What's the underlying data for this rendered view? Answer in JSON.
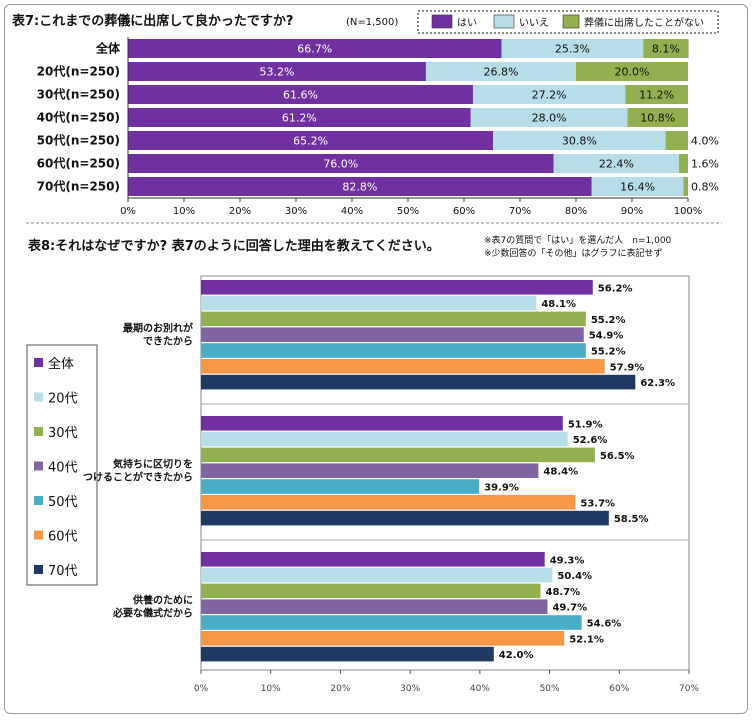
{
  "chart_data": [
    {
      "type": "bar",
      "orientation": "horizontal",
      "stacked": true,
      "title": "表7:これまでの葬儀に出席して良かったですか?",
      "subtitle": "(N=1,500)",
      "categories": [
        "全体",
        "20代(n=250)",
        "30代(n=250)",
        "40代(n=250)",
        "50代(n=250)",
        "60代(n=250)",
        "70代(n=250)"
      ],
      "series": [
        {
          "name": "はい",
          "color": "#7030a0",
          "values": [
            66.7,
            53.2,
            61.6,
            61.2,
            65.2,
            76.0,
            82.8
          ]
        },
        {
          "name": "いいえ",
          "color": "#b7dde8",
          "values": [
            25.3,
            26.8,
            27.2,
            28.0,
            30.8,
            22.4,
            16.4
          ]
        },
        {
          "name": "葬儀に出席したことがない",
          "color": "#92b050",
          "values": [
            8.1,
            20.0,
            11.2,
            10.8,
            4.0,
            1.6,
            0.8
          ]
        }
      ],
      "labels": [
        [
          "66.7%",
          "25.3%",
          "8.1%"
        ],
        [
          "53.2%",
          "26.8%",
          "20.0%"
        ],
        [
          "61.6%",
          "27.2%",
          "11.2%"
        ],
        [
          "61.2%",
          "28.0%",
          "10.8%"
        ],
        [
          "65.2%",
          "30.8%",
          "4.0%"
        ],
        [
          "76.0%",
          "22.4%",
          "1.6%"
        ],
        [
          "82.8%",
          "16.4%",
          "0.8%"
        ]
      ],
      "xticks": [
        "0%",
        "10%",
        "20%",
        "30%",
        "40%",
        "50%",
        "60%",
        "70%",
        "80%",
        "90%",
        "100%"
      ],
      "xlim": [
        0,
        100
      ],
      "legend": "top-right",
      "grid": false
    },
    {
      "type": "bar",
      "orientation": "horizontal",
      "title": "表8:それはなぜですか? 表7のように回答した理由を教えてください。",
      "notes": [
        "※表7の質問で「はい」を選んだ人　n=1,000",
        "※少数回答の「その他」はグラフに表記せず"
      ],
      "groups": [
        {
          "label_lines": [
            "最期のお別れが",
            "できたから"
          ],
          "values": [
            56.2,
            48.1,
            55.2,
            54.9,
            55.2,
            57.9,
            62.3
          ],
          "labels": [
            "56.2%",
            "48.1%",
            "55.2%",
            "54.9%",
            "55.2%",
            "57.9%",
            "62.3%"
          ]
        },
        {
          "label_lines": [
            "気持ちに区切りを",
            "つけることができたから"
          ],
          "values": [
            51.9,
            52.6,
            56.5,
            48.4,
            39.9,
            53.7,
            58.5
          ],
          "labels": [
            "51.9%",
            "52.6%",
            "56.5%",
            "48.4%",
            "39.9%",
            "53.7%",
            "58.5%"
          ]
        },
        {
          "label_lines": [
            "供養のために",
            "必要な儀式だから"
          ],
          "values": [
            49.3,
            50.4,
            48.7,
            49.7,
            54.6,
            52.1,
            42.0
          ],
          "labels": [
            "49.3%",
            "50.4%",
            "48.7%",
            "49.7%",
            "54.6%",
            "52.1%",
            "42.0%"
          ]
        }
      ],
      "series": [
        {
          "name": "全体",
          "color": "#7030a0"
        },
        {
          "name": "20代",
          "color": "#b7dde8"
        },
        {
          "name": "30代",
          "color": "#92b050"
        },
        {
          "name": "40代",
          "color": "#8064a2"
        },
        {
          "name": "50代",
          "color": "#4bacc6"
        },
        {
          "name": "60代",
          "color": "#f79646"
        },
        {
          "name": "70代",
          "color": "#1f3864"
        }
      ],
      "xticks": [
        "0%",
        "10%",
        "20%",
        "30%",
        "40%",
        "50%",
        "60%",
        "70%"
      ],
      "xlim": [
        0,
        70
      ],
      "legend": "left",
      "grid": false
    }
  ]
}
